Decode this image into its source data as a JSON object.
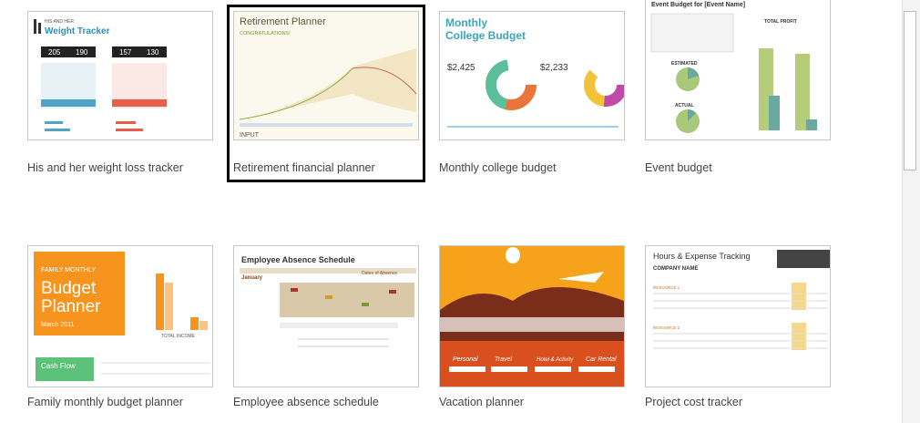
{
  "templates": [
    {
      "name": "His and her weight loss tracker",
      "texts": [
        "HIS AND HER",
        "Weight Tracker",
        "205",
        "190",
        "157",
        "130"
      ]
    },
    {
      "name": "Retirement financial planner",
      "texts": [
        "Retirement Planner",
        "CONGRATULATIONS!",
        "INPUT"
      ]
    },
    {
      "name": "Monthly college budget",
      "texts": [
        "Monthly",
        "College Budget",
        "$2,425",
        "$2,233"
      ]
    },
    {
      "name": "Event budget",
      "texts": [
        "Event Budget for [Event Name]",
        "TOTAL PROFIT",
        "ESTIMATED",
        "ACTUAL"
      ]
    },
    {
      "name": "Family monthly budget planner",
      "texts": [
        "FAMILY MONTHLY",
        "Budget",
        "Planner",
        "March 2011",
        "Cash Flow",
        "TOTAL INCOME"
      ]
    },
    {
      "name": "Employee absence schedule",
      "texts": [
        "Employee Absence Schedule",
        "January",
        "Dates of Absence"
      ]
    },
    {
      "name": "Vacation planner",
      "texts": [
        "Personal",
        "Travel",
        "Hotel & Activity",
        "Car Rental"
      ]
    },
    {
      "name": "Project cost tracker",
      "texts": [
        "Hours & Expense Tracking",
        "COMPANY NAME",
        "RESOURCE 1",
        "RESOURCE 2"
      ]
    }
  ]
}
